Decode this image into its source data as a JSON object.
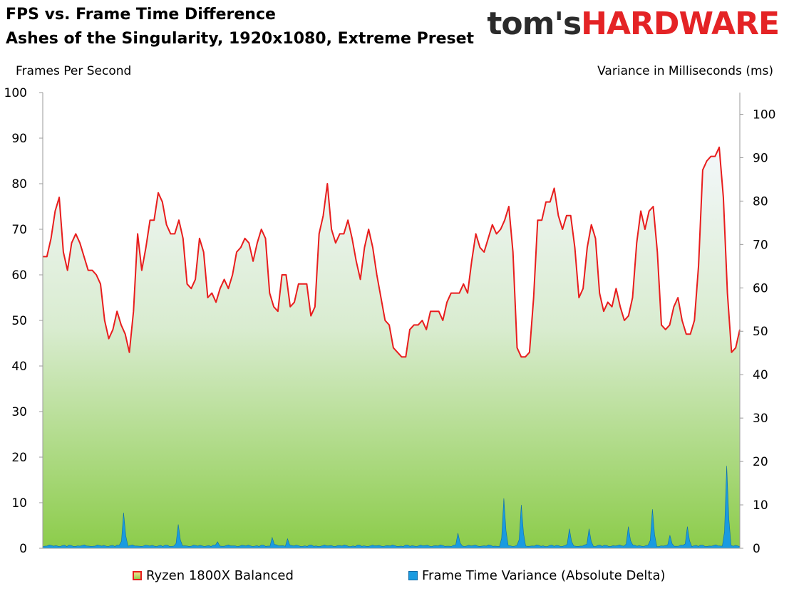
{
  "header": {
    "title_line1": "FPS vs. Frame Time Difference",
    "title_line2": "Ashes of the Singularity, 1920x1080, Extreme Preset",
    "logo_part1": "tom's",
    "logo_part2": "HARDWARE"
  },
  "chart_data": {
    "type": "area",
    "title": "FPS vs. Frame Time Difference",
    "subtitle": "Ashes of the Singularity, 1920x1080, Extreme Preset",
    "ylabel": "Frames Per Second",
    "y2label": "Variance in Milliseconds (ms)",
    "ylim": [
      0,
      100
    ],
    "y2lim": [
      0,
      105
    ],
    "yticks": [
      0,
      10,
      20,
      30,
      40,
      50,
      60,
      70,
      80,
      90,
      100
    ],
    "y2ticks": [
      0,
      10,
      20,
      30,
      40,
      50,
      60,
      70,
      80,
      90,
      100
    ],
    "grid": false,
    "legend_position": "bottom",
    "colors": {
      "fps_line": "#e81d1d",
      "fill_top": "#f2f6f8",
      "fill_bottom": "#8ccc4a",
      "variance": "#1a9be0"
    },
    "series": [
      {
        "name": "Ryzen 1800X Balanced",
        "axis": "left",
        "values": [
          64,
          64,
          68,
          74,
          77,
          65,
          61,
          67,
          69,
          67,
          64,
          61,
          61,
          60,
          58,
          50,
          46,
          48,
          52,
          49,
          47,
          43,
          52,
          69,
          61,
          66,
          72,
          72,
          78,
          76,
          71,
          69,
          69,
          72,
          68,
          58,
          57,
          59,
          68,
          65,
          55,
          56,
          54,
          57,
          59,
          57,
          60,
          65,
          66,
          68,
          67,
          63,
          67,
          70,
          68,
          56,
          53,
          52,
          60,
          60,
          53,
          54,
          58,
          58,
          58,
          51,
          53,
          69,
          73,
          80,
          70,
          67,
          69,
          69,
          72,
          68,
          63,
          59,
          66,
          70,
          66,
          60,
          55,
          50,
          49,
          44,
          43,
          42,
          42,
          48,
          49,
          49,
          50,
          48,
          52,
          52,
          52,
          50,
          54,
          56,
          56,
          56,
          58,
          56,
          63,
          69,
          66,
          65,
          68,
          71,
          69,
          70,
          72,
          75,
          65,
          44,
          42,
          42,
          43,
          55,
          72,
          72,
          76,
          76,
          79,
          73,
          70,
          73,
          73,
          66,
          55,
          57,
          66,
          71,
          68,
          56,
          52,
          54,
          53,
          57,
          53,
          50,
          51,
          55,
          67,
          74,
          70,
          74,
          75,
          65,
          49,
          48,
          49,
          53,
          55,
          50,
          47,
          47,
          50,
          62,
          83,
          85,
          86,
          86,
          88,
          77,
          56,
          43,
          44,
          48
        ]
      },
      {
        "name": "Frame Time Variance (Absolute Delta)",
        "axis": "right",
        "peaks": [
          {
            "x": 0.115,
            "value": 8.2
          },
          {
            "x": 0.195,
            "value": 5.5
          },
          {
            "x": 0.25,
            "value": 1.5
          },
          {
            "x": 0.33,
            "value": 2.5
          },
          {
            "x": 0.35,
            "value": 2.2
          },
          {
            "x": 0.595,
            "value": 3.5
          },
          {
            "x": 0.66,
            "value": 11.5
          },
          {
            "x": 0.685,
            "value": 10
          },
          {
            "x": 0.755,
            "value": 4.5
          },
          {
            "x": 0.785,
            "value": 4.5
          },
          {
            "x": 0.84,
            "value": 5.0
          },
          {
            "x": 0.875,
            "value": 9.0
          },
          {
            "x": 0.9,
            "value": 3.0
          },
          {
            "x": 0.925,
            "value": 5.0
          },
          {
            "x": 0.982,
            "value": 19.0
          }
        ],
        "baseline": 0.8
      }
    ]
  },
  "legend": {
    "item1": "Ryzen 1800X Balanced",
    "item2": "Frame Time Variance (Absolute Delta)"
  }
}
